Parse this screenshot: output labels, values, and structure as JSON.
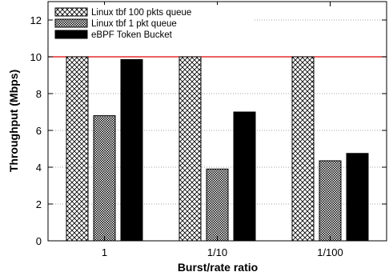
{
  "chart_data": {
    "type": "bar",
    "title": "",
    "xlabel": "Burst/rate ratio",
    "ylabel": "Throughput (Mbps)",
    "categories": [
      "1",
      "1/10",
      "1/100"
    ],
    "ylim": [
      0,
      13
    ],
    "yticks": [
      0,
      2,
      4,
      6,
      8,
      10,
      12
    ],
    "grid": "horizontal dotted",
    "legend_position": "top-left",
    "series": [
      {
        "name": "Linux tbf 100 pkts queue",
        "values": [
          10,
          10,
          10
        ],
        "fill": "crosshatch"
      },
      {
        "name": "Linux tbf 1 pkt queue",
        "values": [
          6.8,
          3.9,
          4.35
        ],
        "fill": "checker"
      },
      {
        "name": "eBPF Token Bucket",
        "values": [
          9.85,
          7.0,
          4.75
        ],
        "fill": "solid"
      }
    ],
    "reference_line": {
      "value": 10,
      "color": "#e00000"
    }
  }
}
